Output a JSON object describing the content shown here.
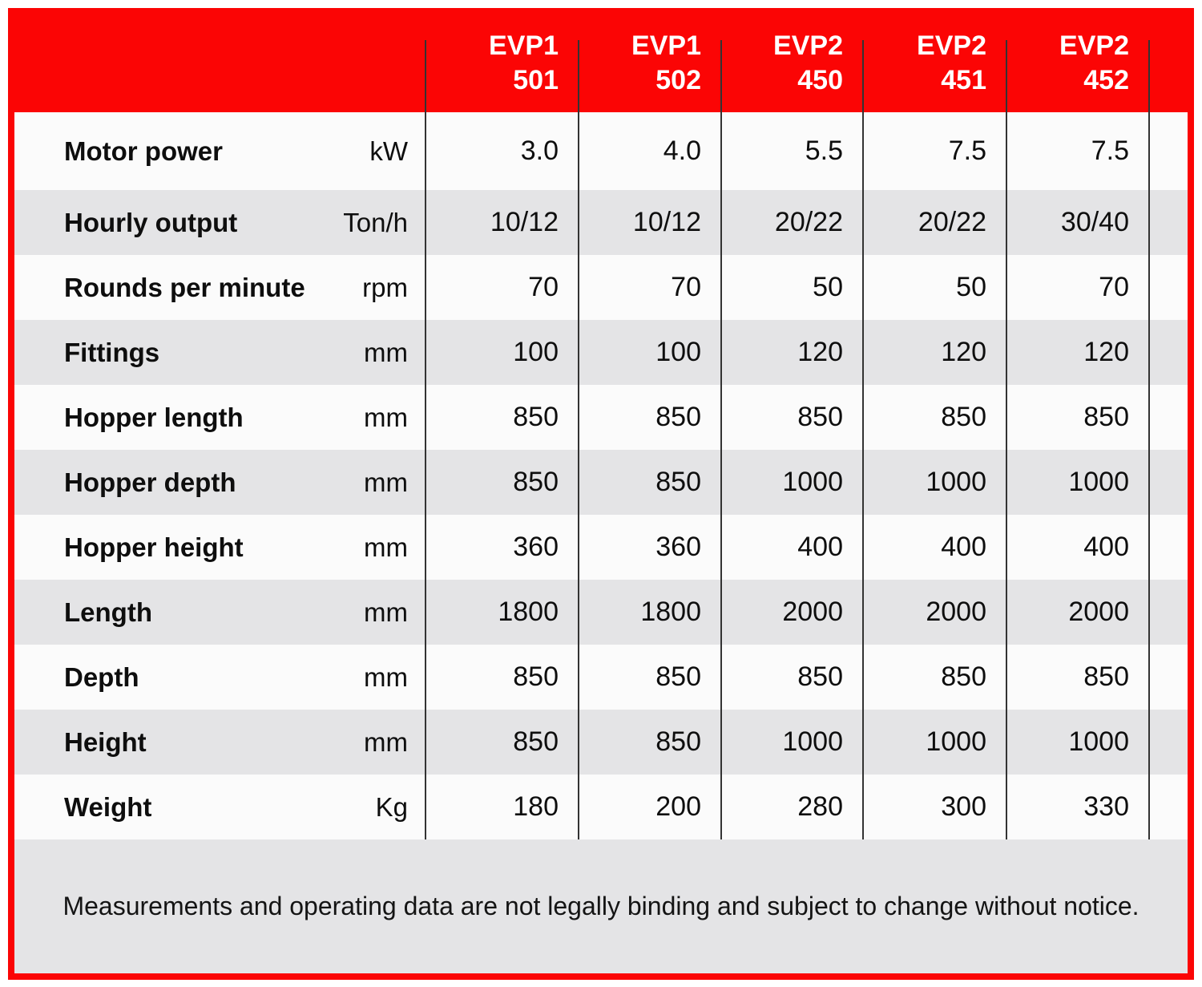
{
  "colors": {
    "accent_red": "#fb0505",
    "row_base": "#fbfbfb",
    "row_alt": "#e4e4e6",
    "divider": "#333333",
    "header_text": "#ffffff",
    "body_text": "#0e0e0e"
  },
  "header": {
    "products": [
      {
        "series": "EVP1",
        "model": "501"
      },
      {
        "series": "EVP1",
        "model": "502"
      },
      {
        "series": "EVP2",
        "model": "450"
      },
      {
        "series": "EVP2",
        "model": "451"
      },
      {
        "series": "EVP2",
        "model": "452"
      }
    ]
  },
  "rows": [
    {
      "label": "Motor power",
      "unit": "kW",
      "values": [
        "3.0",
        "4.0",
        "5.5",
        "7.5",
        "7.5"
      ]
    },
    {
      "label": "Hourly output",
      "unit": "Ton/h",
      "values": [
        "10/12",
        "10/12",
        "20/22",
        "20/22",
        "30/40"
      ]
    },
    {
      "label": "Rounds per minute",
      "unit": "rpm",
      "values": [
        "70",
        "70",
        "50",
        "50",
        "70"
      ]
    },
    {
      "label": "Fittings",
      "unit": "mm",
      "values": [
        "100",
        "100",
        "120",
        "120",
        "120"
      ]
    },
    {
      "label": "Hopper length",
      "unit": "mm",
      "values": [
        "850",
        "850",
        "850",
        "850",
        "850"
      ]
    },
    {
      "label": "Hopper depth",
      "unit": "mm",
      "values": [
        "850",
        "850",
        "1000",
        "1000",
        "1000"
      ]
    },
    {
      "label": "Hopper height",
      "unit": "mm",
      "values": [
        "360",
        "360",
        "400",
        "400",
        "400"
      ]
    },
    {
      "label": "Length",
      "unit": "mm",
      "values": [
        "1800",
        "1800",
        "2000",
        "2000",
        "2000"
      ]
    },
    {
      "label": "Depth",
      "unit": "mm",
      "values": [
        "850",
        "850",
        "850",
        "850",
        "850"
      ]
    },
    {
      "label": "Height",
      "unit": "mm",
      "values": [
        "850",
        "850",
        "1000",
        "1000",
        "1000"
      ]
    },
    {
      "label": "Weight",
      "unit": "Kg",
      "values": [
        "180",
        "200",
        "280",
        "300",
        "330"
      ]
    }
  ],
  "footer": {
    "note": "Measurements and operating data are not legally binding and subject to change without notice."
  }
}
